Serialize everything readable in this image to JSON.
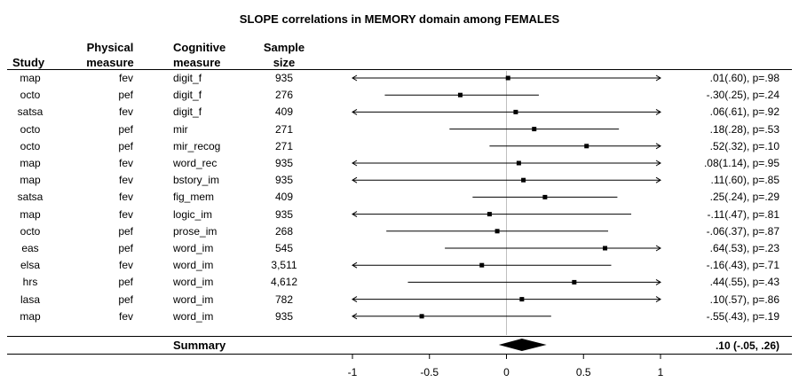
{
  "chart_data": {
    "type": "forest",
    "title": "SLOPE correlations in MEMORY domain among FEMALES",
    "columns": {
      "study": "Study",
      "physical": [
        "Physical",
        "measure"
      ],
      "cognitive": [
        "Cognitive",
        "measure"
      ],
      "sample": [
        "Sample",
        "size"
      ]
    },
    "rows": [
      {
        "study": "map",
        "physical": "fev",
        "cognitive": "digit_f",
        "n": "935",
        "est": 0.01,
        "lo": -1.0,
        "hi": 1.0,
        "lo_arrow": true,
        "hi_arrow": true,
        "label": ".01(.60), p=.98"
      },
      {
        "study": "octo",
        "physical": "pef",
        "cognitive": "digit_f",
        "n": "276",
        "est": -0.3,
        "lo": -0.79,
        "hi": 0.21,
        "lo_arrow": false,
        "hi_arrow": false,
        "label": "-.30(.25), p=.24"
      },
      {
        "study": "satsa",
        "physical": "fev",
        "cognitive": "digit_f",
        "n": "409",
        "est": 0.06,
        "lo": -1.0,
        "hi": 1.0,
        "lo_arrow": true,
        "hi_arrow": true,
        "label": ".06(.61), p=.92"
      },
      {
        "study": "octo",
        "physical": "pef",
        "cognitive": "mir",
        "n": "271",
        "est": 0.18,
        "lo": -0.37,
        "hi": 0.73,
        "lo_arrow": false,
        "hi_arrow": false,
        "label": ".18(.28), p=.53"
      },
      {
        "study": "octo",
        "physical": "pef",
        "cognitive": "mir_recog",
        "n": "271",
        "est": 0.52,
        "lo": -0.11,
        "hi": 1.0,
        "lo_arrow": false,
        "hi_arrow": true,
        "label": ".52(.32), p=.10"
      },
      {
        "study": "map",
        "physical": "fev",
        "cognitive": "word_rec",
        "n": "935",
        "est": 0.08,
        "lo": -1.0,
        "hi": 1.0,
        "lo_arrow": true,
        "hi_arrow": true,
        "label": ".08(1.14), p=.95"
      },
      {
        "study": "map",
        "physical": "fev",
        "cognitive": "bstory_im",
        "n": "935",
        "est": 0.11,
        "lo": -1.0,
        "hi": 1.0,
        "lo_arrow": true,
        "hi_arrow": true,
        "label": ".11(.60), p=.85"
      },
      {
        "study": "satsa",
        "physical": "fev",
        "cognitive": "fig_mem",
        "n": "409",
        "est": 0.25,
        "lo": -0.22,
        "hi": 0.72,
        "lo_arrow": false,
        "hi_arrow": false,
        "label": ".25(.24), p=.29"
      },
      {
        "study": "map",
        "physical": "fev",
        "cognitive": "logic_im",
        "n": "935",
        "est": -0.11,
        "lo": -1.0,
        "hi": 0.81,
        "lo_arrow": true,
        "hi_arrow": false,
        "label": "-.11(.47), p=.81"
      },
      {
        "study": "octo",
        "physical": "pef",
        "cognitive": "prose_im",
        "n": "268",
        "est": -0.06,
        "lo": -0.78,
        "hi": 0.66,
        "lo_arrow": false,
        "hi_arrow": false,
        "label": "-.06(.37), p=.87"
      },
      {
        "study": "eas",
        "physical": "pef",
        "cognitive": "word_im",
        "n": "545",
        "est": 0.64,
        "lo": -0.4,
        "hi": 1.0,
        "lo_arrow": false,
        "hi_arrow": true,
        "label": ".64(.53), p=.23"
      },
      {
        "study": "elsa",
        "physical": "fev",
        "cognitive": "word_im",
        "n": "3,511",
        "est": -0.16,
        "lo": -1.0,
        "hi": 0.68,
        "lo_arrow": true,
        "hi_arrow": false,
        "label": "-.16(.43), p=.71"
      },
      {
        "study": "hrs",
        "physical": "pef",
        "cognitive": "word_im",
        "n": "4,612",
        "est": 0.44,
        "lo": -0.64,
        "hi": 1.0,
        "lo_arrow": false,
        "hi_arrow": true,
        "label": ".44(.55), p=.43"
      },
      {
        "study": "lasa",
        "physical": "pef",
        "cognitive": "word_im",
        "n": "782",
        "est": 0.1,
        "lo": -1.0,
        "hi": 1.0,
        "lo_arrow": true,
        "hi_arrow": true,
        "label": ".10(.57), p=.86"
      },
      {
        "study": "map",
        "physical": "fev",
        "cognitive": "word_im",
        "n": "935",
        "est": -0.55,
        "lo": -1.0,
        "hi": 0.29,
        "lo_arrow": true,
        "hi_arrow": false,
        "label": "-.55(.43), p=.19"
      }
    ],
    "summary": {
      "label": "Summary",
      "est": 0.1,
      "lo": -0.05,
      "hi": 0.26,
      "text": ".10 (-.05, .26)"
    },
    "xlim": [
      -1,
      1
    ],
    "xticks": [
      -1,
      -0.5,
      0,
      0.5,
      1
    ],
    "xtick_labels": [
      "-1",
      "-0.5",
      "0",
      "0.5",
      "1"
    ],
    "reference_line": 0,
    "colors": {
      "line": "#000000",
      "reference": "#bfbfbf"
    }
  }
}
